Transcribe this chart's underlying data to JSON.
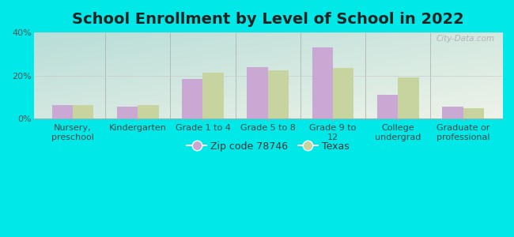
{
  "title": "School Enrollment by Level of School in 2022",
  "categories": [
    "Nursery,\npreschool",
    "Kindergarten",
    "Grade 1 to 4",
    "Grade 5 to 8",
    "Grade 9 to\n12",
    "College\nundergrad",
    "Graduate or\nprofessional"
  ],
  "zip_values": [
    6.5,
    5.5,
    18.5,
    24.0,
    33.0,
    11.0,
    5.5
  ],
  "texas_values": [
    6.5,
    6.5,
    21.5,
    22.5,
    23.5,
    19.0,
    5.0
  ],
  "zip_color": "#c9a8d4",
  "texas_color": "#c8d4a0",
  "background_color": "#00e8e8",
  "grad_color_topleft": "#b8ddd8",
  "grad_color_bottomright": "#eef3e8",
  "ylim": [
    0,
    40
  ],
  "yticks": [
    0,
    20,
    40
  ],
  "ytick_labels": [
    "0%",
    "20%",
    "40%"
  ],
  "legend_zip_label": "Zip code 78746",
  "legend_texas_label": "Texas",
  "watermark": "City-Data.com",
  "title_fontsize": 14,
  "tick_fontsize": 8,
  "legend_fontsize": 9,
  "bar_width": 0.32
}
